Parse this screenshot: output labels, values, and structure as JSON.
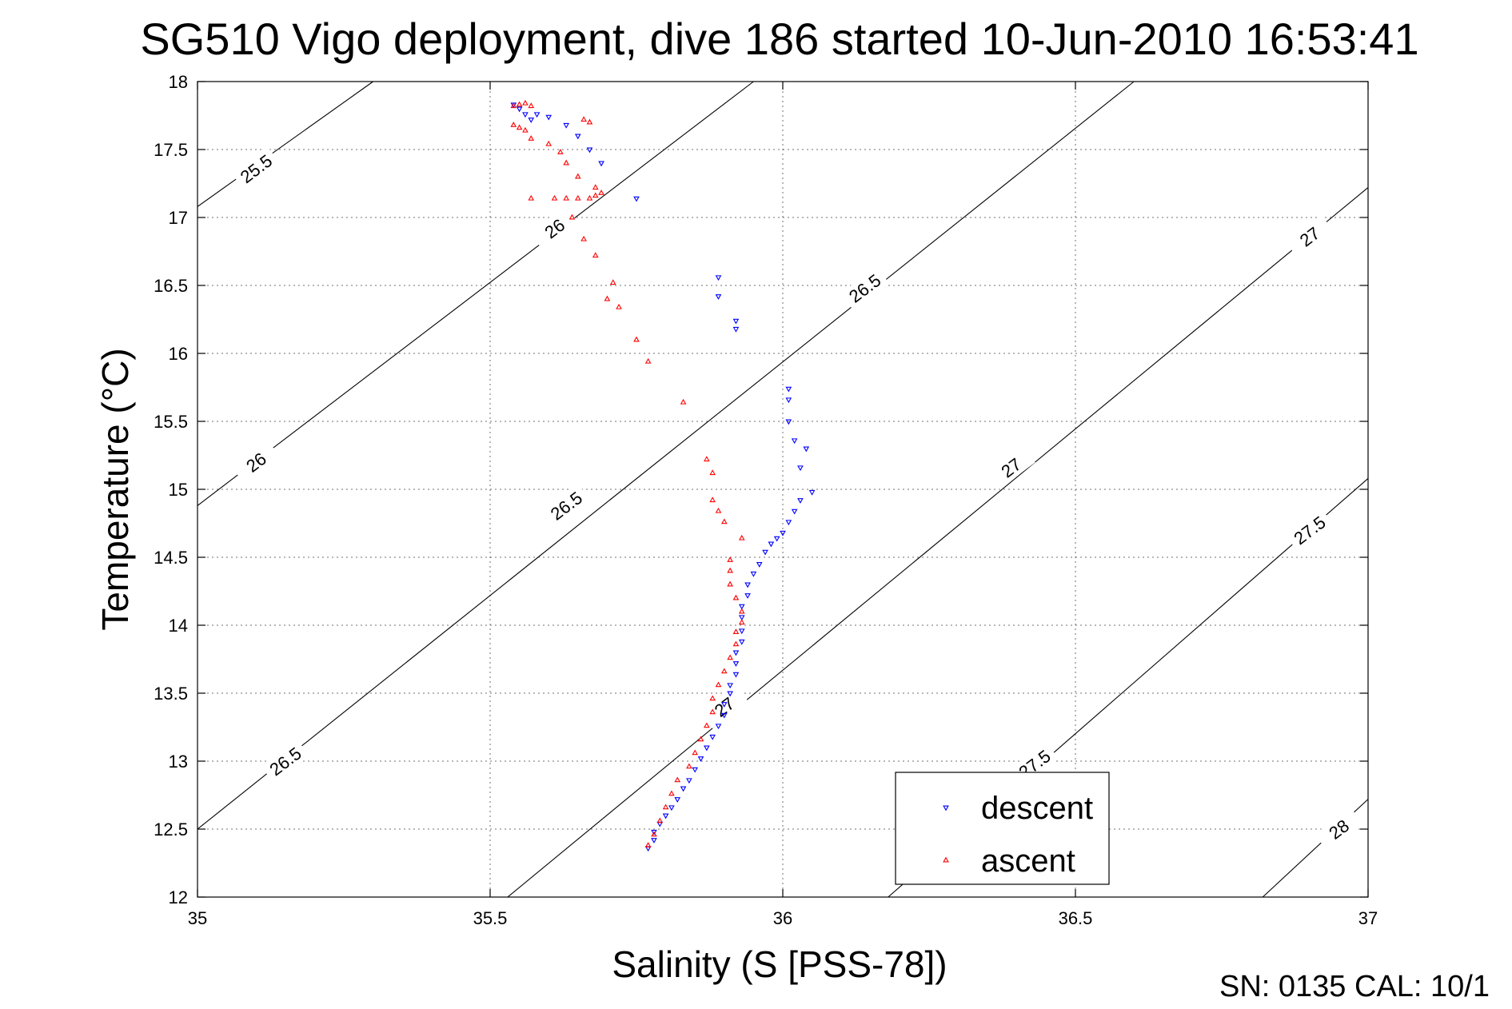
{
  "footer": "SN: 0135  CAL: 10/1",
  "chart_data": {
    "type": "scatter",
    "title": "SG510 Vigo deployment, dive 186 started 10-Jun-2010 16:53:41",
    "xlabel": "Salinity (S [PSS-78])",
    "ylabel": "Temperature (°C)",
    "xlim": [
      35,
      37
    ],
    "ylim": [
      12,
      18
    ],
    "xticks": [
      "35",
      "35.5",
      "36",
      "36.5",
      "37"
    ],
    "yticks": [
      "12",
      "12.5",
      "13",
      "13.5",
      "14",
      "14.5",
      "15",
      "15.5",
      "16",
      "16.5",
      "17",
      "17.5",
      "18"
    ],
    "grid": true,
    "legend_position": "bottom-right",
    "isopycnals": [
      {
        "label": "25.5",
        "points": [
          [
            35,
            17.08
          ],
          [
            35.3,
            18
          ]
        ]
      },
      {
        "label": "26",
        "points": [
          [
            35,
            14.88
          ],
          [
            35.95,
            18
          ]
        ]
      },
      {
        "label": "26.5",
        "points": [
          [
            35,
            12.5
          ],
          [
            36.6,
            18
          ]
        ]
      },
      {
        "label": "27",
        "points": [
          [
            35.53,
            12
          ],
          [
            37,
            17.22
          ]
        ]
      },
      {
        "label": "27.5",
        "points": [
          [
            36.18,
            12
          ],
          [
            37,
            15.08
          ]
        ]
      },
      {
        "label": "28",
        "points": [
          [
            36.82,
            12
          ],
          [
            37,
            12.72
          ]
        ]
      }
    ],
    "contour_labels": [
      {
        "text": "25.5",
        "x": 35.1,
        "y": 17.36
      },
      {
        "text": "26",
        "x": 35.1,
        "y": 15.2
      },
      {
        "text": "26",
        "x": 35.61,
        "y": 16.92
      },
      {
        "text": "26.5",
        "x": 35.15,
        "y": 13.0
      },
      {
        "text": "26.5",
        "x": 35.63,
        "y": 14.88
      },
      {
        "text": "26.5",
        "x": 36.14,
        "y": 16.48
      },
      {
        "text": "27",
        "x": 35.9,
        "y": 13.4
      },
      {
        "text": "27",
        "x": 36.39,
        "y": 15.16
      },
      {
        "text": "27",
        "x": 36.9,
        "y": 16.86
      },
      {
        "text": "27.5",
        "x": 36.43,
        "y": 12.98
      },
      {
        "text": "27.5",
        "x": 36.9,
        "y": 14.7
      },
      {
        "text": "28",
        "x": 36.95,
        "y": 12.5
      }
    ],
    "series": [
      {
        "name": "descent",
        "color": "#0000ff",
        "marker": "triangle-down",
        "points": [
          [
            35.54,
            17.83
          ],
          [
            35.55,
            17.8
          ],
          [
            35.56,
            17.76
          ],
          [
            35.57,
            17.72
          ],
          [
            35.58,
            17.76
          ],
          [
            35.6,
            17.74
          ],
          [
            35.63,
            17.68
          ],
          [
            35.65,
            17.6
          ],
          [
            35.67,
            17.5
          ],
          [
            35.69,
            17.4
          ],
          [
            35.75,
            17.14
          ],
          [
            35.89,
            16.56
          ],
          [
            35.89,
            16.42
          ],
          [
            35.92,
            16.24
          ],
          [
            35.92,
            16.18
          ],
          [
            36.01,
            15.74
          ],
          [
            36.01,
            15.66
          ],
          [
            36.01,
            15.5
          ],
          [
            36.02,
            15.36
          ],
          [
            36.04,
            15.3
          ],
          [
            36.03,
            15.16
          ],
          [
            36.05,
            14.98
          ],
          [
            36.03,
            14.92
          ],
          [
            36.02,
            14.84
          ],
          [
            36.01,
            14.76
          ],
          [
            36.0,
            14.68
          ],
          [
            35.99,
            14.64
          ],
          [
            35.98,
            14.6
          ],
          [
            35.97,
            14.54
          ],
          [
            35.96,
            14.45
          ],
          [
            35.95,
            14.38
          ],
          [
            35.94,
            14.3
          ],
          [
            35.94,
            14.22
          ],
          [
            35.93,
            14.14
          ],
          [
            35.93,
            14.06
          ],
          [
            35.93,
            13.96
          ],
          [
            35.93,
            13.88
          ],
          [
            35.92,
            13.8
          ],
          [
            35.92,
            13.72
          ],
          [
            35.92,
            13.64
          ],
          [
            35.91,
            13.56
          ],
          [
            35.91,
            13.5
          ],
          [
            35.9,
            13.42
          ],
          [
            35.9,
            13.34
          ],
          [
            35.89,
            13.26
          ],
          [
            35.88,
            13.18
          ],
          [
            35.87,
            13.1
          ],
          [
            35.86,
            13.02
          ],
          [
            35.85,
            12.94
          ],
          [
            35.84,
            12.86
          ],
          [
            35.83,
            12.8
          ],
          [
            35.82,
            12.72
          ],
          [
            35.81,
            12.66
          ],
          [
            35.8,
            12.6
          ],
          [
            35.79,
            12.54
          ],
          [
            35.78,
            12.48
          ],
          [
            35.78,
            12.42
          ],
          [
            35.77,
            12.36
          ]
        ]
      },
      {
        "name": "ascent",
        "color": "#ff0000",
        "marker": "triangle-up",
        "points": [
          [
            35.54,
            17.82
          ],
          [
            35.55,
            17.83
          ],
          [
            35.56,
            17.84
          ],
          [
            35.57,
            17.82
          ],
          [
            35.54,
            17.68
          ],
          [
            35.55,
            17.66
          ],
          [
            35.56,
            17.64
          ],
          [
            35.57,
            17.58
          ],
          [
            35.6,
            17.54
          ],
          [
            35.62,
            17.48
          ],
          [
            35.63,
            17.4
          ],
          [
            35.65,
            17.3
          ],
          [
            35.66,
            17.72
          ],
          [
            35.67,
            17.7
          ],
          [
            35.68,
            17.22
          ],
          [
            35.69,
            17.18
          ],
          [
            35.68,
            17.16
          ],
          [
            35.67,
            17.14
          ],
          [
            35.65,
            17.14
          ],
          [
            35.63,
            17.14
          ],
          [
            35.61,
            17.14
          ],
          [
            35.57,
            17.14
          ],
          [
            35.64,
            17.0
          ],
          [
            35.66,
            16.84
          ],
          [
            35.68,
            16.72
          ],
          [
            35.71,
            16.52
          ],
          [
            35.7,
            16.4
          ],
          [
            35.72,
            16.34
          ],
          [
            35.75,
            16.1
          ],
          [
            35.77,
            15.94
          ],
          [
            35.83,
            15.64
          ],
          [
            35.87,
            15.22
          ],
          [
            35.88,
            15.12
          ],
          [
            35.88,
            14.92
          ],
          [
            35.89,
            14.84
          ],
          [
            35.9,
            14.76
          ],
          [
            35.93,
            14.64
          ],
          [
            35.91,
            14.48
          ],
          [
            35.91,
            14.4
          ],
          [
            35.91,
            14.3
          ],
          [
            35.92,
            14.2
          ],
          [
            35.93,
            14.1
          ],
          [
            35.93,
            14.02
          ],
          [
            35.92,
            13.95
          ],
          [
            35.92,
            13.86
          ],
          [
            35.91,
            13.76
          ],
          [
            35.9,
            13.66
          ],
          [
            35.89,
            13.56
          ],
          [
            35.88,
            13.46
          ],
          [
            35.88,
            13.36
          ],
          [
            35.87,
            13.26
          ],
          [
            35.86,
            13.16
          ],
          [
            35.85,
            13.06
          ],
          [
            35.84,
            12.96
          ],
          [
            35.82,
            12.86
          ],
          [
            35.81,
            12.76
          ],
          [
            35.8,
            12.66
          ],
          [
            35.79,
            12.56
          ],
          [
            35.78,
            12.46
          ],
          [
            35.77,
            12.38
          ]
        ]
      }
    ]
  }
}
